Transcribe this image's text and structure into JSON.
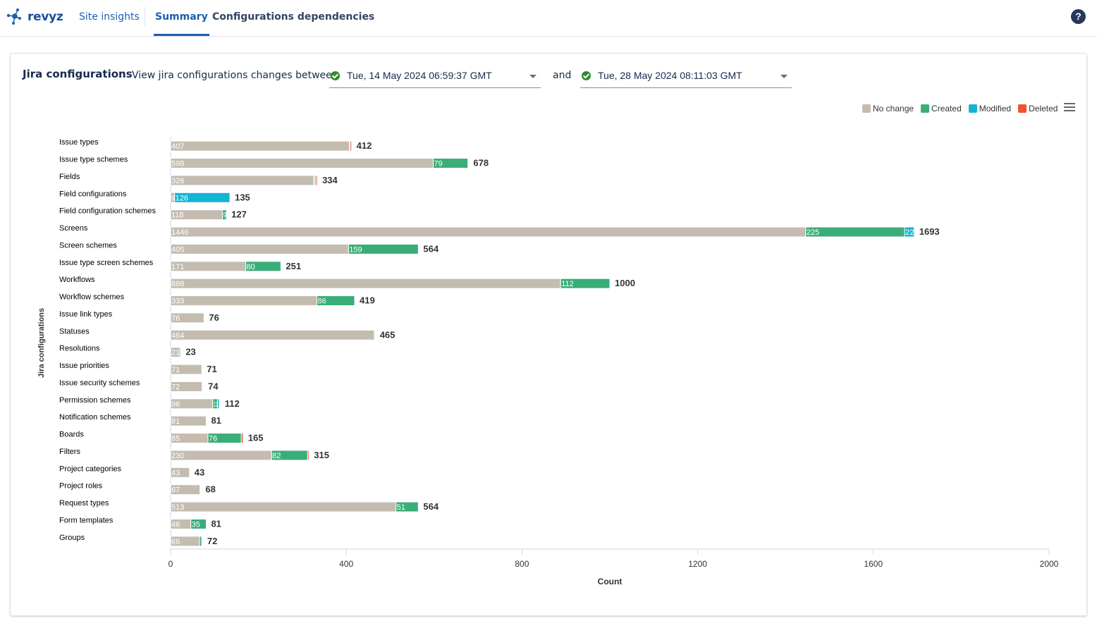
{
  "brand": "revyz",
  "nav": {
    "tabs": [
      {
        "label": "Site insights",
        "active": false
      },
      {
        "label": "Summary",
        "active": true
      },
      {
        "label": "Configurations dependencies",
        "active": false
      }
    ],
    "help_icon": "question-circle-icon"
  },
  "card": {
    "title": "Jira configurations",
    "description": "View jira configurations changes between",
    "date_from": "Tue, 14 May 2024 06:59:37 GMT",
    "and_label": "and",
    "date_to": "Tue, 28 May 2024 08:11:03 GMT"
  },
  "colors": {
    "no_change": "#c5bcb0",
    "created": "#3aae78",
    "modified": "#12b5d4",
    "deleted": "#f0522e",
    "nav_blue": "#1c5fb0"
  },
  "chart_data": {
    "type": "bar",
    "orientation": "horizontal",
    "stacked": true,
    "categories": [
      "Issue types",
      "Issue type schemes",
      "Fields",
      "Field configurations",
      "Field configuration schemes",
      "Screens",
      "Screen schemes",
      "Issue type screen schemes",
      "Workflows",
      "Workflow schemes",
      "Issue link types",
      "Statuses",
      "Resolutions",
      "Issue priorities",
      "Issue security schemes",
      "Permission schemes",
      "Notification schemes",
      "Boards",
      "Filters",
      "Project categories",
      "Project roles",
      "Request types",
      "Form templates",
      "Groups"
    ],
    "series": [
      {
        "name": "No change",
        "color": "#c5bcb0",
        "values": [
          407,
          598,
          326,
          9,
          118,
          1446,
          405,
          171,
          888,
          333,
          76,
          464,
          21,
          71,
          72,
          96,
          81,
          85,
          230,
          43,
          67,
          513,
          46,
          66
        ]
      },
      {
        "name": "Created",
        "color": "#3aae78",
        "values": [
          2,
          79,
          2,
          0,
          9,
          225,
          159,
          80,
          112,
          86,
          0,
          0,
          2,
          0,
          1,
          11,
          0,
          76,
          82,
          0,
          1,
          51,
          35,
          5
        ]
      },
      {
        "name": "Modified",
        "color": "#12b5d4",
        "values": [
          0,
          0,
          3,
          126,
          0,
          22,
          0,
          0,
          0,
          0,
          0,
          1,
          0,
          0,
          0,
          4,
          0,
          0,
          0,
          0,
          0,
          0,
          0,
          0
        ]
      },
      {
        "name": "Deleted",
        "color": "#f0522e",
        "values": [
          3,
          1,
          3,
          0,
          0,
          0,
          0,
          0,
          0,
          0,
          0,
          0,
          0,
          0,
          1,
          1,
          0,
          4,
          3,
          0,
          0,
          0,
          0,
          1
        ]
      }
    ],
    "totals": [
      412,
      678,
      334,
      135,
      127,
      1693,
      564,
      251,
      1000,
      419,
      76,
      465,
      23,
      71,
      74,
      112,
      81,
      165,
      315,
      43,
      68,
      564,
      81,
      72
    ],
    "xlabel": "Count",
    "ylabel": "Jira configurations",
    "xlim": [
      0,
      2000
    ],
    "xticks": [
      0,
      400,
      800,
      1200,
      1600,
      2000
    ],
    "legend": "top-right",
    "grid": false
  }
}
